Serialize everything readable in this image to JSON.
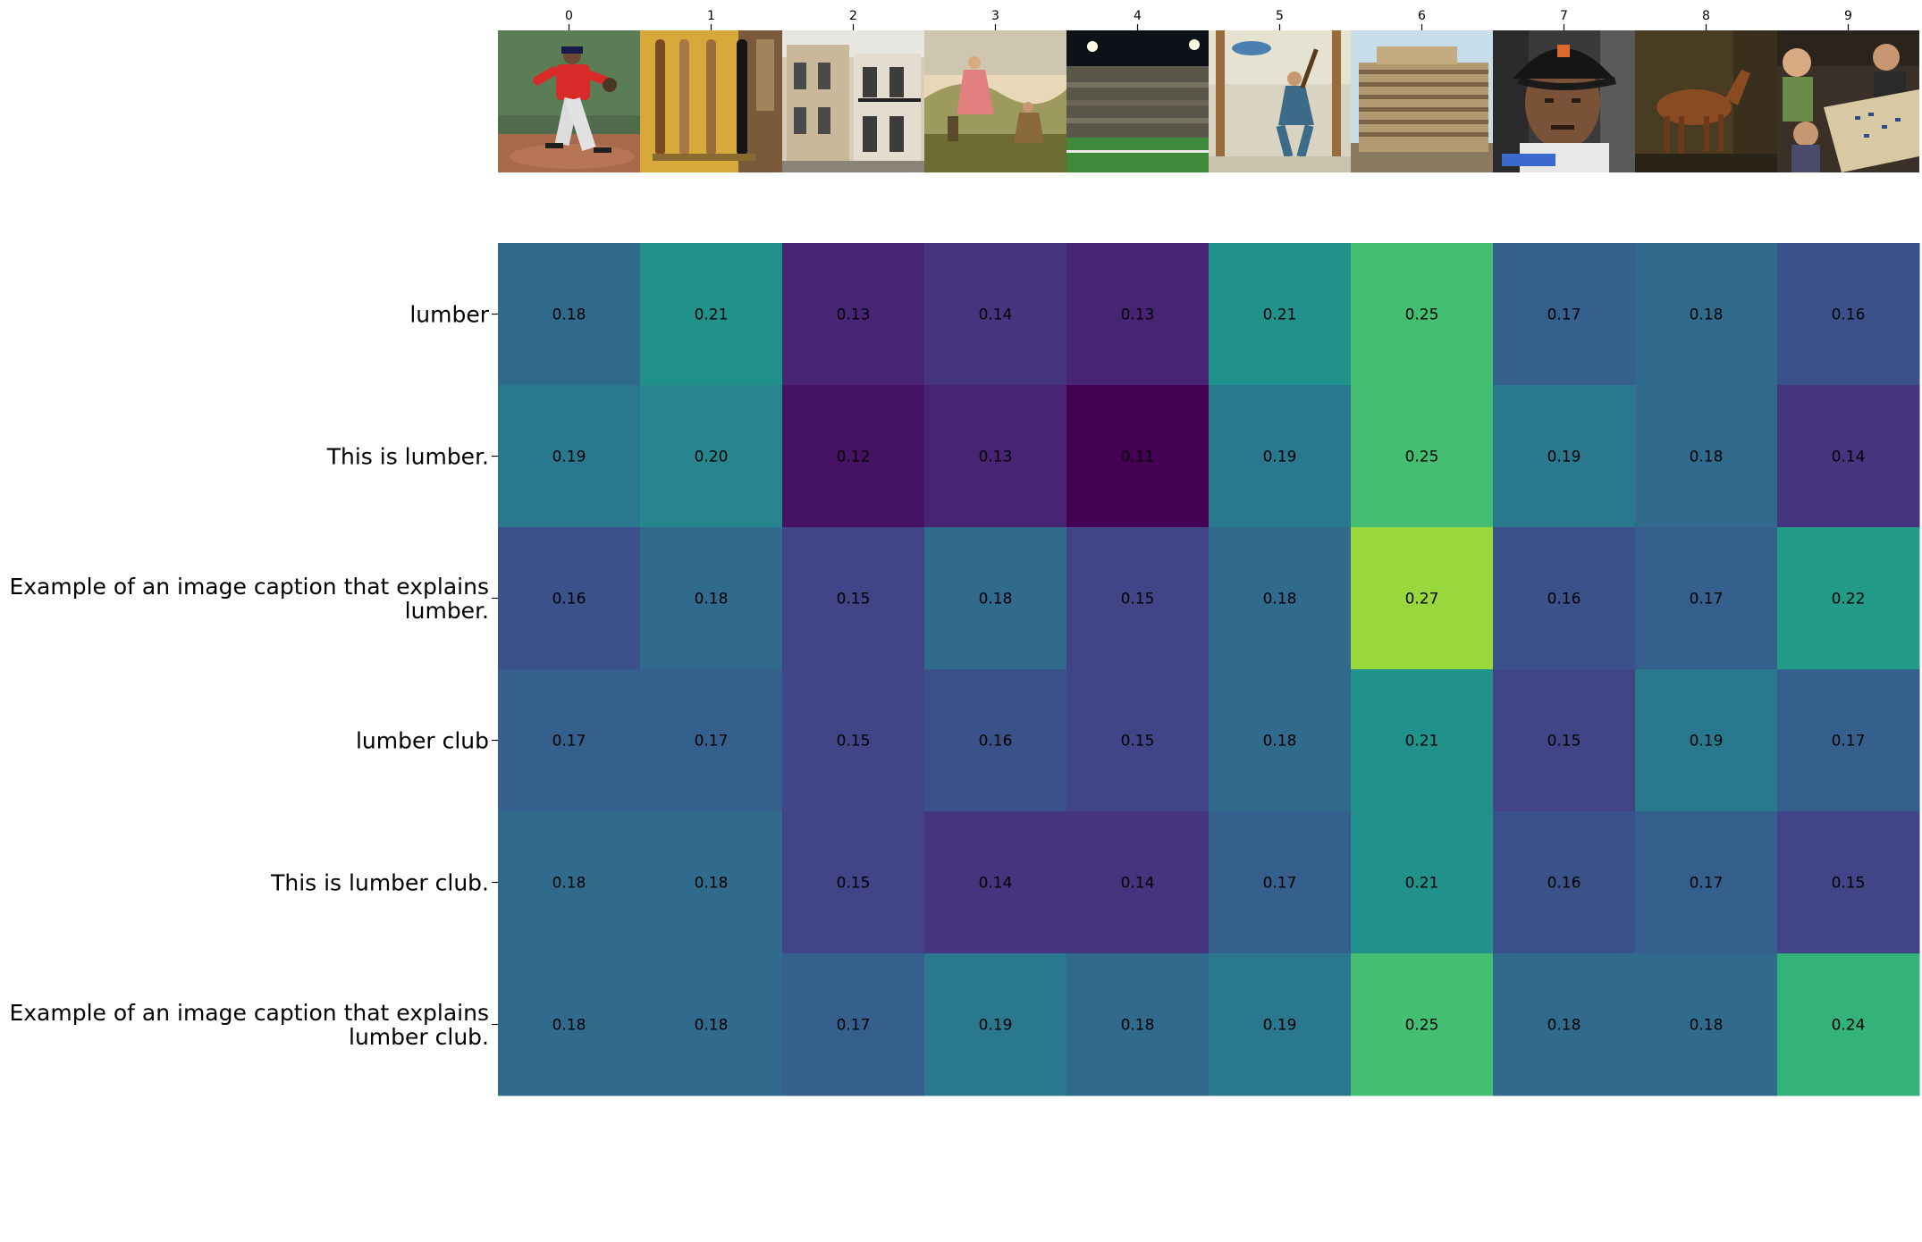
{
  "chart_data": {
    "type": "heatmap",
    "title": "",
    "xlabel": "",
    "ylabel": "",
    "x_tick_labels": [
      "0",
      "1",
      "2",
      "3",
      "4",
      "5",
      "6",
      "7",
      "8",
      "9"
    ],
    "y_tick_labels": [
      "lumber",
      "This is lumber.",
      "Example of an image caption that explains lumber.",
      "lumber club",
      "This is lumber club.",
      "Example of an image caption that explains lumber club."
    ],
    "values": [
      [
        0.18,
        0.21,
        0.13,
        0.14,
        0.13,
        0.21,
        0.25,
        0.17,
        0.18,
        0.16
      ],
      [
        0.19,
        0.2,
        0.12,
        0.13,
        0.11,
        0.19,
        0.25,
        0.19,
        0.18,
        0.14
      ],
      [
        0.16,
        0.18,
        0.15,
        0.18,
        0.15,
        0.18,
        0.27,
        0.16,
        0.17,
        0.22
      ],
      [
        0.17,
        0.17,
        0.15,
        0.16,
        0.15,
        0.18,
        0.21,
        0.15,
        0.19,
        0.17
      ],
      [
        0.18,
        0.18,
        0.15,
        0.14,
        0.14,
        0.17,
        0.21,
        0.16,
        0.17,
        0.15
      ],
      [
        0.18,
        0.18,
        0.17,
        0.19,
        0.18,
        0.19,
        0.25,
        0.18,
        0.18,
        0.24
      ]
    ],
    "value_range": [
      0.11,
      0.27
    ],
    "colormap": "viridis",
    "cell_label_format": "2 decimals",
    "colorbar": false,
    "grid": false,
    "image_row_position": "top",
    "thumbnail_icons": [
      "baseball-pitcher-photo-icon",
      "baseball-bats-photo-icon",
      "street-buildings-photo-icon",
      "painting-figures-photo-icon",
      "stadium-photo-icon",
      "woodcutter-painting-icon",
      "lumber-stack-photo-icon",
      "baseball-cap-portrait-icon",
      "horse-painting-icon",
      "board-game-photo-icon"
    ]
  }
}
